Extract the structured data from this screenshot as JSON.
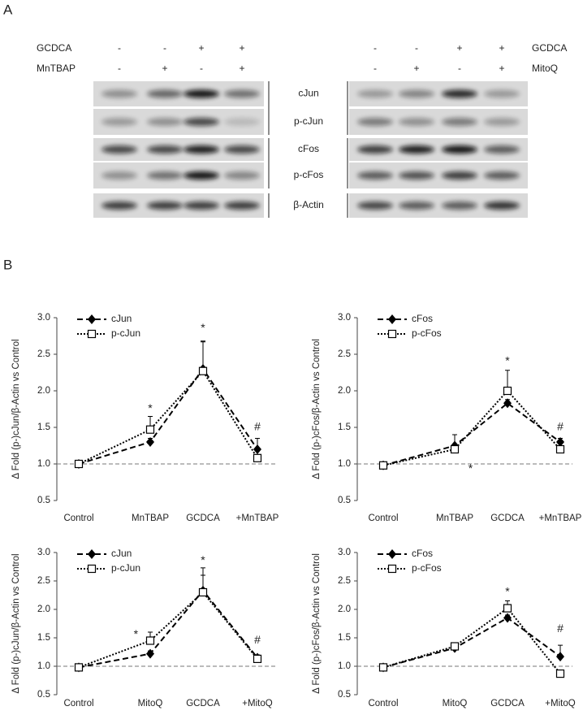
{
  "panel_a": {
    "label": "A",
    "left": {
      "treatments": [
        {
          "name": "GCDCA",
          "signs": [
            "-",
            "-",
            "+",
            "+"
          ]
        },
        {
          "name": "MnTBAP",
          "signs": [
            "-",
            "+",
            "-",
            "+"
          ]
        }
      ]
    },
    "right": {
      "treatments": [
        {
          "name": "GCDCA",
          "signs": [
            "-",
            "-",
            "+",
            "+"
          ]
        },
        {
          "name": "MitoQ",
          "signs": [
            "-",
            "+",
            "-",
            "+"
          ]
        }
      ]
    },
    "bands": [
      "cJun",
      "p-cJun",
      "cFos",
      "p-cFos",
      "β-Actin"
    ]
  },
  "panel_b": {
    "label": "B"
  },
  "chart_data": [
    {
      "type": "line",
      "y_label": "Δ Fold (p-)cJun/β-Actin vs Control",
      "categories": [
        "Control",
        "MnTBAP",
        "GCDCA",
        "+MnTBAP"
      ],
      "ylim": [
        0.5,
        3.0
      ],
      "yticks": [
        {
          "value": 0.5,
          "label": "0.5"
        },
        {
          "value": 1.0,
          "label": "1.0"
        },
        {
          "value": 1.5,
          "label": "1.5"
        },
        {
          "value": 2.0,
          "label": "2.0"
        },
        {
          "value": 2.5,
          "label": "2.5"
        },
        {
          "value": 3.0,
          "label": "3.0"
        }
      ],
      "reference_line": 1,
      "legend": "upper left",
      "series": [
        {
          "name": "cJun",
          "color": "#000000",
          "style": "dash",
          "marker": "diamond",
          "values": [
            1.0,
            1.3,
            2.3,
            1.2
          ],
          "errors": [
            0.03,
            0.05,
            0.38,
            0.15
          ]
        },
        {
          "name": "p-cJun",
          "color": "#000000",
          "style": "dot",
          "marker": "square-open",
          "values": [
            1.0,
            1.47,
            2.27,
            1.08
          ],
          "errors": [
            0.03,
            0.18,
            0.4,
            0.1
          ]
        }
      ],
      "annotations": [
        {
          "text": "*",
          "x": 1,
          "y": 1.75
        },
        {
          "text": "*",
          "x": 2,
          "y": 2.85
        },
        {
          "text": "#",
          "x": 3,
          "y": 1.5
        }
      ]
    },
    {
      "type": "line",
      "y_label": "Δ Fold (p-)cFos/β-Actin vs Control",
      "categories": [
        "Control",
        "MnTBAP",
        "GCDCA",
        "+MnTBAP"
      ],
      "ylim": [
        0.5,
        3.0
      ],
      "yticks": [
        {
          "value": 0.5,
          "label": "0.5"
        },
        {
          "value": 1.0,
          "label": "1.0"
        },
        {
          "value": 1.5,
          "label": "1.5"
        },
        {
          "value": 2.0,
          "label": "2.0"
        },
        {
          "value": 2.5,
          "label": "2.5"
        },
        {
          "value": 3.0,
          "label": "3.0"
        }
      ],
      "reference_line": 1,
      "legend": "upper left",
      "series": [
        {
          "name": "cFos",
          "color": "#000000",
          "style": "dash",
          "marker": "diamond",
          "values": [
            0.98,
            1.25,
            1.83,
            1.3
          ],
          "errors": [
            0.03,
            0.15,
            0.05,
            0.05
          ]
        },
        {
          "name": "p-cFos",
          "color": "#000000",
          "style": "dot",
          "marker": "square-open",
          "values": [
            0.98,
            1.2,
            2.0,
            1.2
          ],
          "errors": [
            0.03,
            0.05,
            0.28,
            0.05
          ]
        }
      ],
      "annotations": [
        {
          "text": "*",
          "x": 2,
          "y": 2.4
        },
        {
          "text": "*",
          "x": 1.3,
          "y": 0.93
        },
        {
          "text": "#",
          "x": 3,
          "y": 1.5
        }
      ]
    },
    {
      "type": "line",
      "y_label": "Δ Fold (p-)cJun/β-Actin vs Control",
      "categories": [
        "Control",
        "MitoQ",
        "GCDCA",
        "+MitoQ"
      ],
      "ylim": [
        0.5,
        3.0
      ],
      "yticks": [
        {
          "value": 0.5,
          "label": "0.5"
        },
        {
          "value": 1.0,
          "label": "1.0"
        },
        {
          "value": 1.5,
          "label": "1.5"
        },
        {
          "value": 2.0,
          "label": "2.0"
        },
        {
          "value": 2.5,
          "label": "2.5"
        },
        {
          "value": 3.0,
          "label": "3.0"
        }
      ],
      "reference_line": 1,
      "legend": "upper left",
      "series": [
        {
          "name": "cJun",
          "color": "#000000",
          "style": "dash",
          "marker": "diamond",
          "values": [
            0.98,
            1.22,
            2.33,
            1.15
          ],
          "errors": [
            0.03,
            0.05,
            0.4,
            0.05
          ]
        },
        {
          "name": "p-cJun",
          "color": "#000000",
          "style": "dot",
          "marker": "square-open",
          "values": [
            0.98,
            1.45,
            2.3,
            1.13
          ],
          "errors": [
            0.03,
            0.15,
            0.3,
            0.05
          ]
        }
      ],
      "annotations": [
        {
          "text": "*",
          "x": 0.8,
          "y": 1.55
        },
        {
          "text": "*",
          "x": 2,
          "y": 2.85
        },
        {
          "text": "#",
          "x": 3,
          "y": 1.45
        }
      ]
    },
    {
      "type": "line",
      "y_label": "Δ Fold (p-)cFos/β-Actin vs Control",
      "categories": [
        "Control",
        "MitoQ",
        "GCDCA",
        "+MitoQ"
      ],
      "ylim": [
        0.5,
        3.0
      ],
      "yticks": [
        {
          "value": 0.5,
          "label": "0.5"
        },
        {
          "value": 1.0,
          "label": "1.0"
        },
        {
          "value": 1.5,
          "label": "1.5"
        },
        {
          "value": 2.0,
          "label": "2.0"
        },
        {
          "value": 2.5,
          "label": "2.5"
        },
        {
          "value": 3.0,
          "label": "3.0"
        }
      ],
      "reference_line": 1,
      "legend": "upper left",
      "series": [
        {
          "name": "cFos",
          "color": "#000000",
          "style": "dash",
          "marker": "diamond",
          "values": [
            0.98,
            1.32,
            1.85,
            1.17
          ],
          "errors": [
            0.03,
            0.03,
            0.05,
            0.2
          ]
        },
        {
          "name": "p-cFos",
          "color": "#000000",
          "style": "dot",
          "marker": "square-open",
          "values": [
            0.98,
            1.35,
            2.02,
            0.87
          ],
          "errors": [
            0.03,
            0.03,
            0.13,
            0.03
          ]
        }
      ],
      "annotations": [
        {
          "text": "*",
          "x": 2,
          "y": 2.3
        },
        {
          "text": "#",
          "x": 3,
          "y": 1.65
        }
      ]
    }
  ]
}
